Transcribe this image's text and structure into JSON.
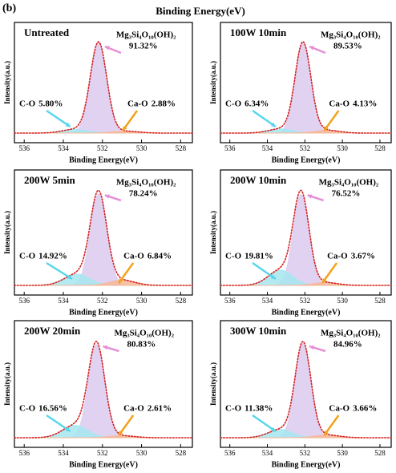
{
  "label": "(b)",
  "header": "Binding Energy(eV)",
  "chart_data": [
    {
      "type": "xps",
      "title": "Untreated",
      "xlabel": "Binding Energy(eV)",
      "ylabel": "Intensity(a.u.)",
      "xlim": [
        536.5,
        527.4
      ],
      "xticks": [
        536,
        534,
        532,
        530,
        528
      ],
      "categories": [
        "Mg₃Si₄O₁₀(OH)₂",
        "C-O",
        "Ca-O"
      ],
      "x": [
        532.2,
        533.4,
        530.8
      ],
      "values": [
        91.32,
        5.8,
        2.88
      ],
      "value_labels": [
        "91.32%",
        "5.80%",
        "2.88%"
      ],
      "colors": [
        "#dccaf0",
        "#a6e6f0",
        "#f6b896"
      ],
      "arrow_colors": [
        "#e58fd8",
        "#58d6ea",
        "#f3a21a"
      ]
    },
    {
      "type": "xps",
      "title": "100W 10min",
      "xlabel": "Binding Energy(eV)",
      "ylabel": "Intensity(a.u.)",
      "xlim": [
        536.5,
        527.4
      ],
      "xticks": [
        536,
        534,
        532,
        530,
        528
      ],
      "categories": [
        "Mg₃Si₄O₁₀(OH)₂",
        "C-O",
        "Ca-O"
      ],
      "x": [
        532.1,
        533.3,
        530.8
      ],
      "values": [
        89.53,
        6.34,
        4.13
      ],
      "value_labels": [
        "89.53%",
        "6.34%",
        "4.13%"
      ],
      "colors": [
        "#dccaf0",
        "#a6e6f0",
        "#f6b896"
      ],
      "arrow_colors": [
        "#e58fd8",
        "#58d6ea",
        "#f3a21a"
      ]
    },
    {
      "type": "xps",
      "title": "200W 5min",
      "xlabel": "Binding Energy(eV)",
      "ylabel": "Intensity(a.u.)",
      "xlim": [
        536.5,
        527.4
      ],
      "xticks": [
        536,
        534,
        532,
        530,
        528
      ],
      "categories": [
        "Mg₃Si₄O₁₀(OH)₂",
        "C-O",
        "Ca-O"
      ],
      "x": [
        532.2,
        533.3,
        531.0
      ],
      "values": [
        78.24,
        14.92,
        6.84
      ],
      "value_labels": [
        "78.24%",
        "14.92%",
        "6.84%"
      ],
      "colors": [
        "#dccaf0",
        "#a6e6f0",
        "#f6b896"
      ],
      "arrow_colors": [
        "#e58fd8",
        "#58d6ea",
        "#f3a21a"
      ]
    },
    {
      "type": "xps",
      "title": "200W 10min",
      "xlabel": "Binding Energy(eV)",
      "ylabel": "Intensity(a.u.)",
      "xlim": [
        536.5,
        527.4
      ],
      "xticks": [
        536,
        534,
        532,
        530,
        528
      ],
      "categories": [
        "Mg₃Si₄O₁₀(OH)₂",
        "C-O",
        "Ca-O"
      ],
      "x": [
        532.2,
        533.3,
        530.9
      ],
      "values": [
        76.52,
        19.81,
        3.67
      ],
      "value_labels": [
        "76.52%",
        "19.81%",
        "3.67%"
      ],
      "colors": [
        "#dccaf0",
        "#a6e6f0",
        "#f6b896"
      ],
      "arrow_colors": [
        "#e58fd8",
        "#58d6ea",
        "#f3a21a"
      ]
    },
    {
      "type": "xps",
      "title": "200W 20min",
      "xlabel": "Binding Energy(eV)",
      "ylabel": "Intensity(a.u.)",
      "xlim": [
        536.5,
        527.4
      ],
      "xticks": [
        536,
        534,
        532,
        530,
        528
      ],
      "categories": [
        "Mg₃Si₄O₁₀(OH)₂",
        "C-O",
        "Ca-O"
      ],
      "x": [
        532.3,
        533.4,
        531.0
      ],
      "values": [
        80.83,
        16.56,
        2.61
      ],
      "value_labels": [
        "80.83%",
        "16.56%",
        "2.61%"
      ],
      "colors": [
        "#dccaf0",
        "#a6e6f0",
        "#f6b896"
      ],
      "arrow_colors": [
        "#e58fd8",
        "#58d6ea",
        "#f3a21a"
      ]
    },
    {
      "type": "xps",
      "title": "300W 10min",
      "xlabel": "Binding Energy(eV)",
      "ylabel": "Intensity(a.u.)",
      "xlim": [
        536.5,
        527.4
      ],
      "xticks": [
        536,
        534,
        532,
        530,
        528
      ],
      "categories": [
        "Mg₃Si₄O₁₀(OH)₂",
        "C-O",
        "Ca-O"
      ],
      "x": [
        532.1,
        533.3,
        530.8
      ],
      "values": [
        84.96,
        11.38,
        3.66
      ],
      "value_labels": [
        "84.96%",
        "11.38%",
        "3.66%"
      ],
      "colors": [
        "#dccaf0",
        "#a6e6f0",
        "#f6b896"
      ],
      "arrow_colors": [
        "#e58fd8",
        "#58d6ea",
        "#f3a21a"
      ]
    }
  ]
}
